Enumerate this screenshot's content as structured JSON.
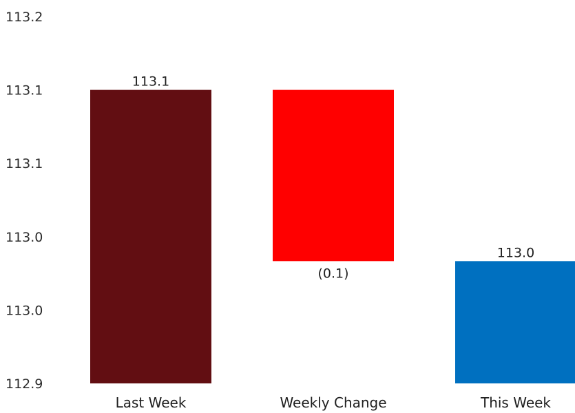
{
  "chart_data": {
    "type": "bar",
    "subtype": "waterfall",
    "title": "",
    "xlabel": "",
    "ylabel": "",
    "grid": false,
    "legend": "none",
    "ylim": [
      112.9,
      113.2
    ],
    "yticks": [
      {
        "value": 112.9,
        "label": "112.9"
      },
      {
        "value": 112.96,
        "label": "113.0"
      },
      {
        "value": 113.02,
        "label": "113.0"
      },
      {
        "value": 113.08,
        "label": "113.1"
      },
      {
        "value": 113.14,
        "label": "113.1"
      },
      {
        "value": 113.2,
        "label": "113.2"
      }
    ],
    "categories": [
      "Last Week",
      "Weekly Change",
      "This Week"
    ],
    "bars": [
      {
        "category": "Last Week",
        "start": 112.9,
        "end": 113.14,
        "label": "113.1",
        "label_position": "above",
        "color": "#620E12"
      },
      {
        "category": "Weekly Change",
        "start": 113.14,
        "end": 113.0,
        "label": "(0.1)",
        "label_position": "below",
        "color": "#FF0000"
      },
      {
        "category": "This Week",
        "start": 112.9,
        "end": 113.0,
        "label": "113.0",
        "label_position": "above",
        "color": "#0070C0"
      }
    ]
  }
}
